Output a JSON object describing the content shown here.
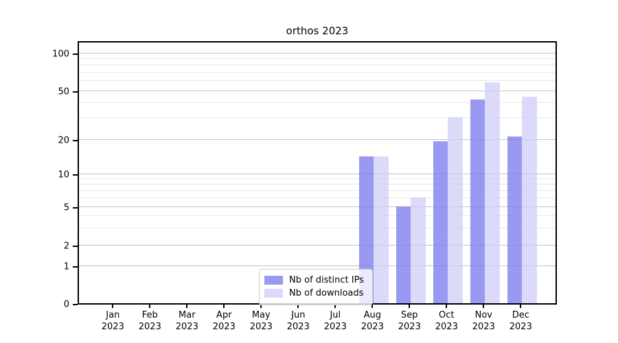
{
  "title": "orthos 2023",
  "chart_data": {
    "type": "bar",
    "title": "orthos 2023",
    "xlabel": "",
    "ylabel": "",
    "categories": [
      "Jan 2023",
      "Feb 2023",
      "Mar 2023",
      "Apr 2023",
      "May 2023",
      "Jun 2023",
      "Jul 2023",
      "Aug 2023",
      "Sep 2023",
      "Oct 2023",
      "Nov 2023",
      "Dec 2023"
    ],
    "series": [
      {
        "name": "Nb of distinct IPs",
        "color_rgba": "rgba(124,124,238,0.78)",
        "color_hex": "#9a9af0",
        "values": [
          0,
          0,
          0,
          0,
          0,
          0,
          0,
          14,
          5,
          19,
          42,
          21
        ]
      },
      {
        "name": "Nb of downloads",
        "color_rgba": "rgba(205,205,247,0.72)",
        "color_hex": "#dbdbf8",
        "values": [
          0,
          0,
          0,
          0,
          0,
          0,
          0,
          14,
          6,
          30,
          58,
          44
        ]
      }
    ],
    "yscale": "symlog-like (linear 0-1, log above)",
    "yticks_major": [
      0,
      1,
      2,
      5,
      10,
      20,
      50,
      100
    ],
    "yticks_minor": [
      3,
      4,
      6,
      7,
      8,
      9,
      30,
      40,
      60,
      70,
      80,
      90
    ],
    "ylim": [
      0,
      126
    ],
    "grid": "horizontal major+minor",
    "grid_major_color": "#c3c3c3",
    "grid_minor_color": "#e7e7e7",
    "legend_position": "lower center",
    "legend_entries": [
      "Nb of distinct IPs",
      "Nb of downloads"
    ]
  }
}
